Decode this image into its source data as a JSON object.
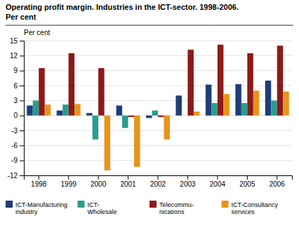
{
  "chart_data": {
    "type": "bar",
    "title": "Operating profit margin. Industries in the ICT-sector. 1998-2006.",
    "subtitle": "Per cent",
    "ylabel": "Per cent",
    "categories": [
      "1998",
      "1999",
      "2000",
      "2001",
      "2002",
      "2003",
      "2004",
      "2005",
      "2006"
    ],
    "series": [
      {
        "name": "ICT-Manufacturing\nindustry",
        "color": "#1f3d7a",
        "values": [
          2.0,
          1.0,
          0.5,
          2.0,
          -0.5,
          4.0,
          6.2,
          6.3,
          7.0
        ]
      },
      {
        "name": "ICT-\nWholesale",
        "color": "#2a9d8f",
        "values": [
          3.0,
          2.2,
          -4.8,
          -2.5,
          1.0,
          0.0,
          2.5,
          2.5,
          3.0
        ]
      },
      {
        "name": "Telecommu-\nnications",
        "color": "#8b1a1a",
        "values": [
          9.5,
          12.5,
          9.5,
          -0.3,
          -0.3,
          13.2,
          14.2,
          12.5,
          14.0
        ]
      },
      {
        "name": "ICT-Consultancy\nservices",
        "color": "#e8941a",
        "values": [
          2.2,
          2.3,
          -11.0,
          -10.3,
          -4.8,
          0.8,
          4.3,
          5.0,
          4.8
        ]
      }
    ],
    "ylim": [
      -12,
      15
    ],
    "yticks": [
      -12,
      -9,
      -6,
      -3,
      0,
      3,
      6,
      9,
      12,
      15
    ],
    "grid": true,
    "legend": "bottom"
  }
}
